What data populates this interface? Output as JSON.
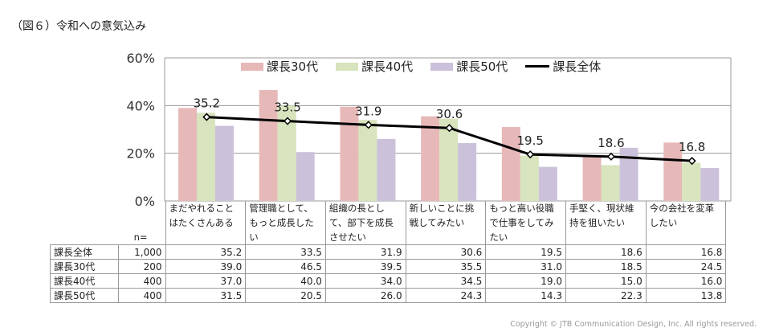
{
  "title": "（図６）令和への意気込み",
  "copyright": "Copyright © JTB Communication Design, Inc. All rights reserved.",
  "chart_data": {
    "type": "bar",
    "categories": [
      "まだやれることはたくさんある",
      "管理職として、もっと成長したい",
      "組織の長として、部下を成長させたい",
      "新しいことに挑戦してみたい",
      "もっと高い役職で仕事をしてみたい",
      "手堅く、現状維持を狙いたい",
      "今の会社を変革したい"
    ],
    "ylim": [
      0,
      60
    ],
    "yticks": [
      "0%",
      "20%",
      "40%",
      "60%"
    ],
    "grid": true,
    "legend_position": "top",
    "series": [
      {
        "name": "課長30代",
        "type": "bar",
        "color": "#e6b9b8",
        "n": "200",
        "values": [
          39.0,
          46.5,
          39.5,
          35.5,
          31.0,
          18.5,
          24.5
        ],
        "display": [
          "39.0",
          "46.5",
          "39.5",
          "35.5",
          "31.0",
          "18.5",
          "24.5"
        ]
      },
      {
        "name": "課長40代",
        "type": "bar",
        "color": "#d7e4bd",
        "n": "400",
        "values": [
          37.0,
          40.0,
          34.0,
          34.5,
          19.0,
          15.0,
          16.0
        ],
        "display": [
          "37.0",
          "40.0",
          "34.0",
          "34.5",
          "19.0",
          "15.0",
          "16.0"
        ]
      },
      {
        "name": "課長50代",
        "type": "bar",
        "color": "#ccc1da",
        "n": "400",
        "values": [
          31.5,
          20.5,
          26.0,
          24.3,
          14.3,
          22.3,
          13.8
        ],
        "display": [
          "31.5",
          "20.5",
          "26.0",
          "24.3",
          "14.3",
          "22.3",
          "13.8"
        ]
      },
      {
        "name": "課長全体",
        "type": "line",
        "color": "#000000",
        "n": "1,000",
        "values": [
          35.2,
          33.5,
          31.9,
          30.6,
          19.5,
          18.6,
          16.8
        ],
        "display": [
          "35.2",
          "33.5",
          "31.9",
          "30.6",
          "19.5",
          "18.6",
          "16.8"
        ]
      }
    ],
    "table": {
      "n_label": "n=",
      "row_order": [
        3,
        0,
        1,
        2
      ]
    }
  }
}
